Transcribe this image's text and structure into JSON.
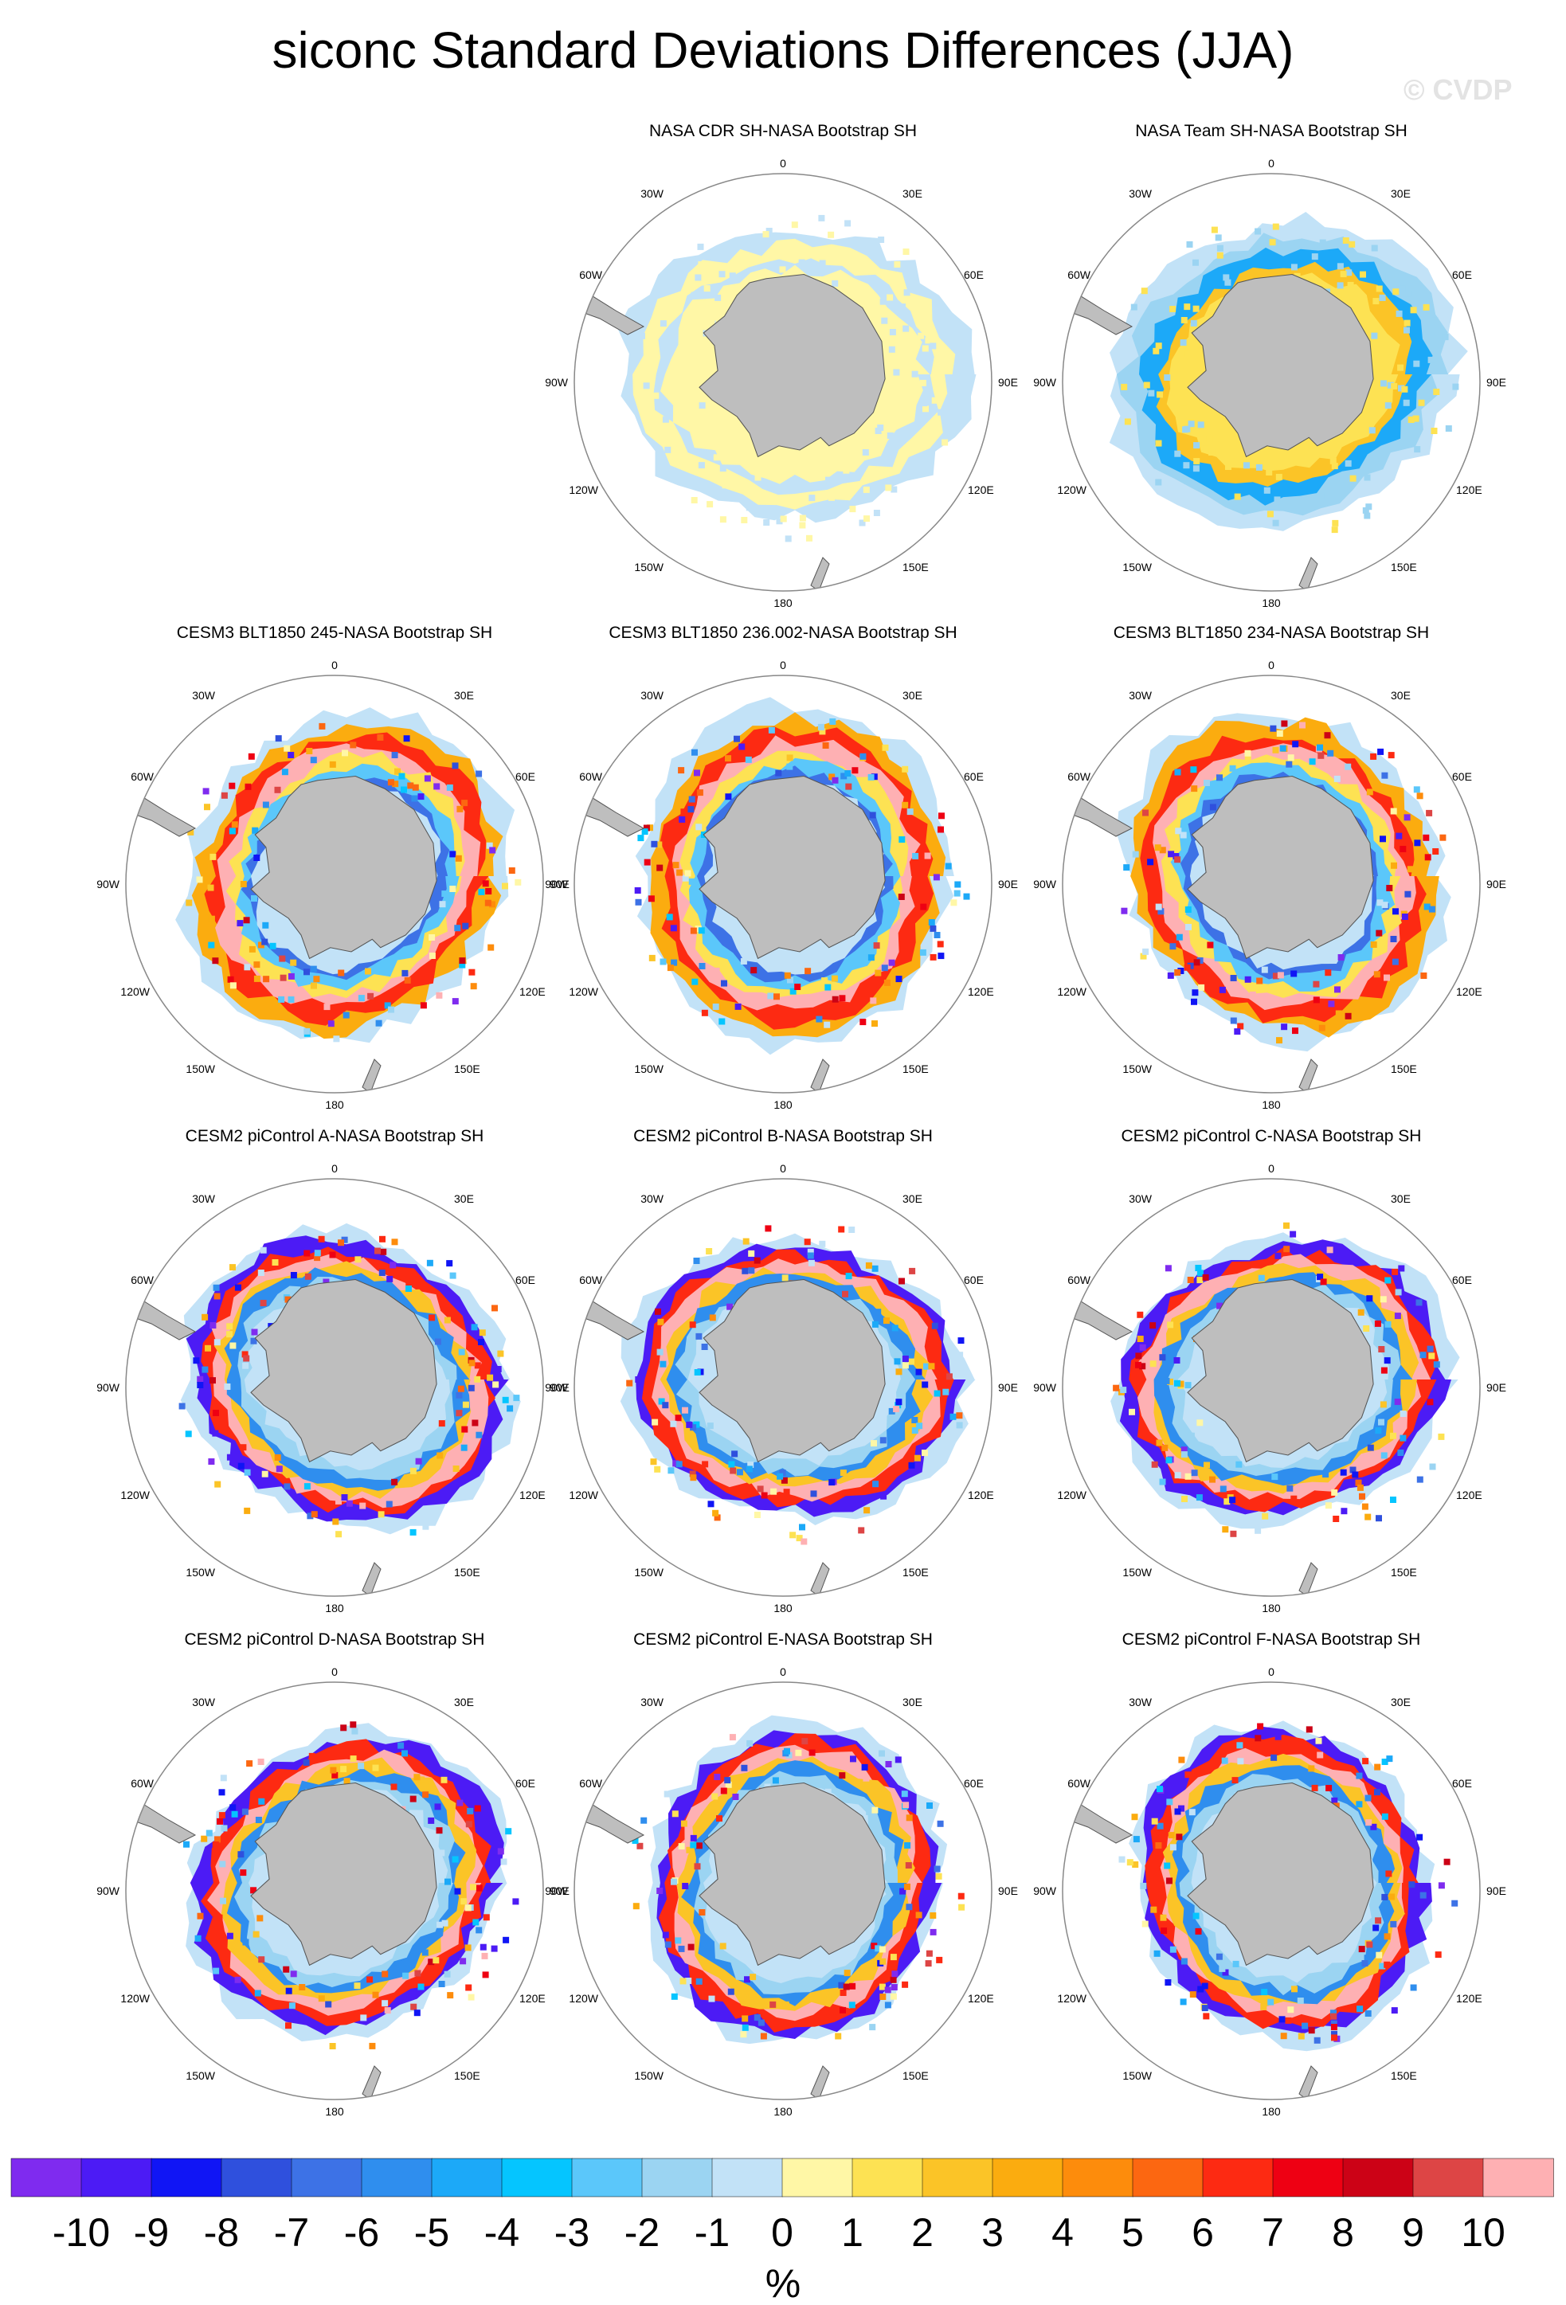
{
  "title": "siconc Standard Deviations Differences (JJA)",
  "watermark": "© CVDP",
  "colorbar": {
    "colors": [
      "#7f2bef",
      "#4c1bf5",
      "#1015f5",
      "#2f50dd",
      "#3d72e6",
      "#2f8eee",
      "#1ca9f8",
      "#05c5ff",
      "#5bc7fa",
      "#9bd4f2",
      "#c2e2f7",
      "#fff7a6",
      "#fde253",
      "#fbc427",
      "#fbac0f",
      "#fd8c0c",
      "#fc6711",
      "#fd2a12",
      "#ee0013",
      "#cc0216",
      "#dd4545",
      "#feb0b3"
    ],
    "labels": [
      "-10",
      "-9",
      "-8",
      "-7",
      "-6",
      "-5",
      "-4",
      "-3",
      "-2",
      "-1",
      "0",
      "1",
      "2",
      "3",
      "4",
      "5",
      "6",
      "7",
      "8",
      "9",
      "10"
    ],
    "units": "%"
  },
  "map_labels": {
    "top": "0",
    "bottom": "180",
    "left": "90W",
    "right": "90E",
    "ul30": "30W",
    "ur30": "30E",
    "ul60": "60W",
    "ur60": "60E",
    "ll120": "120W",
    "lr120": "120E",
    "ll150": "150W",
    "lr150": "150E"
  },
  "panels": [
    {
      "title": "NASA CDR SH-NASA Bootstrap SH",
      "style": "cdr"
    },
    {
      "title": "NASA Team SH-NASA Bootstrap SH",
      "style": "team"
    },
    {
      "title": "CESM3 BLT1850 245-NASA Bootstrap SH",
      "style": "cesm3"
    },
    {
      "title": "CESM3 BLT1850 236.002-NASA Bootstrap SH",
      "style": "cesm3"
    },
    {
      "title": "CESM3 BLT1850 234-NASA Bootstrap SH",
      "style": "cesm3"
    },
    {
      "title": "CESM2 piControl A-NASA Bootstrap SH",
      "style": "cesm2"
    },
    {
      "title": "CESM2 piControl B-NASA Bootstrap SH",
      "style": "cesm2"
    },
    {
      "title": "CESM2 piControl C-NASA Bootstrap SH",
      "style": "cesm2"
    },
    {
      "title": "CESM2 piControl D-NASA Bootstrap SH",
      "style": "cesm2"
    },
    {
      "title": "CESM2 piControl E-NASA Bootstrap SH",
      "style": "cesm2"
    },
    {
      "title": "CESM2 piControl F-NASA Bootstrap SH",
      "style": "cesm2"
    }
  ]
}
